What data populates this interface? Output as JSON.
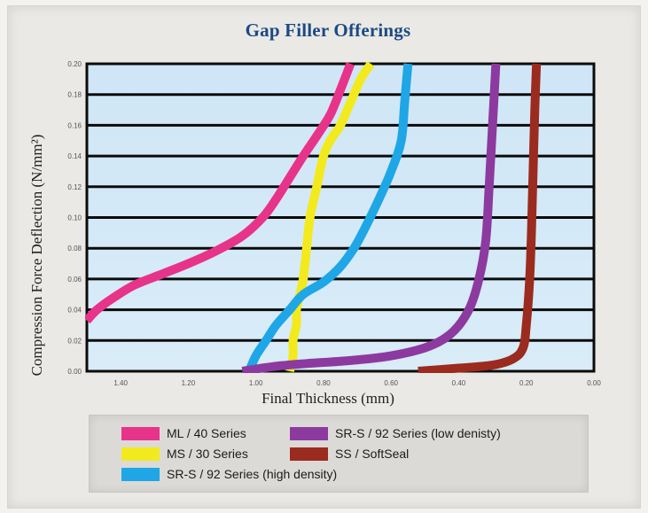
{
  "chart_data": {
    "type": "line",
    "title": "Gap Filler Offerings",
    "xlabel": "Final Thickness (mm)",
    "ylabel": "Compression Force Deflection (N/mm²)",
    "xlim": [
      1.5,
      0.0
    ],
    "ylim": [
      0.0,
      0.2
    ],
    "x_reversed": true,
    "xticks": [
      "1.40",
      "1.20",
      "1.00",
      "0.80",
      "0.60",
      "0.40",
      "0.20",
      "0.00"
    ],
    "yticks": [
      "0.00",
      "0.02",
      "0.04",
      "0.06",
      "0.08",
      "0.10",
      "0.12",
      "0.14",
      "0.16",
      "0.18",
      "0.20"
    ],
    "grid": true,
    "legend_position": "bottom",
    "series": [
      {
        "name": "ML / 40 Series",
        "color": "#e8338a",
        "x": [
          1.5,
          1.47,
          1.42,
          1.36,
          1.28,
          1.2,
          1.12,
          1.04,
          0.98,
          0.94,
          0.9,
          0.86,
          0.82,
          0.78,
          0.75,
          0.72
        ],
        "y": [
          0.033,
          0.04,
          0.048,
          0.056,
          0.063,
          0.07,
          0.078,
          0.088,
          0.1,
          0.112,
          0.126,
          0.14,
          0.153,
          0.167,
          0.183,
          0.2
        ]
      },
      {
        "name": "MS / 30 Series",
        "color": "#f3ea1e",
        "x": [
          0.9,
          0.89,
          0.89,
          0.88,
          0.88,
          0.87,
          0.86,
          0.85,
          0.84,
          0.82,
          0.8,
          0.78,
          0.75,
          0.72,
          0.69,
          0.66
        ],
        "y": [
          0.0,
          0.01,
          0.02,
          0.03,
          0.04,
          0.05,
          0.06,
          0.08,
          0.1,
          0.12,
          0.14,
          0.15,
          0.16,
          0.175,
          0.19,
          0.2
        ]
      },
      {
        "name": "SR-S / 92 Series (high density)",
        "color": "#1fa6e6",
        "x": [
          1.02,
          1.0,
          0.97,
          0.94,
          0.9,
          0.86,
          0.8,
          0.75,
          0.71,
          0.68,
          0.64,
          0.6,
          0.57,
          0.56,
          0.55
        ],
        "y": [
          0.0,
          0.01,
          0.02,
          0.03,
          0.04,
          0.05,
          0.058,
          0.068,
          0.08,
          0.092,
          0.11,
          0.13,
          0.15,
          0.175,
          0.2
        ]
      },
      {
        "name": "SR-S / 92 Series (low denisty)",
        "color": "#8c3aa0",
        "x": [
          1.04,
          0.95,
          0.85,
          0.72,
          0.6,
          0.49,
          0.42,
          0.37,
          0.34,
          0.32,
          0.31,
          0.3,
          0.29
        ],
        "y": [
          0.0,
          0.003,
          0.005,
          0.007,
          0.01,
          0.016,
          0.025,
          0.04,
          0.06,
          0.085,
          0.12,
          0.16,
          0.2
        ]
      },
      {
        "name": "SS / SoftSeal",
        "color": "#9b2b1e",
        "x": [
          0.52,
          0.4,
          0.3,
          0.24,
          0.21,
          0.2,
          0.19,
          0.185,
          0.18,
          0.175,
          0.17
        ],
        "y": [
          0.0,
          0.002,
          0.004,
          0.008,
          0.015,
          0.03,
          0.06,
          0.09,
          0.13,
          0.17,
          0.2
        ]
      }
    ]
  },
  "legend_layout_order": [
    0,
    3,
    1,
    4,
    2
  ]
}
